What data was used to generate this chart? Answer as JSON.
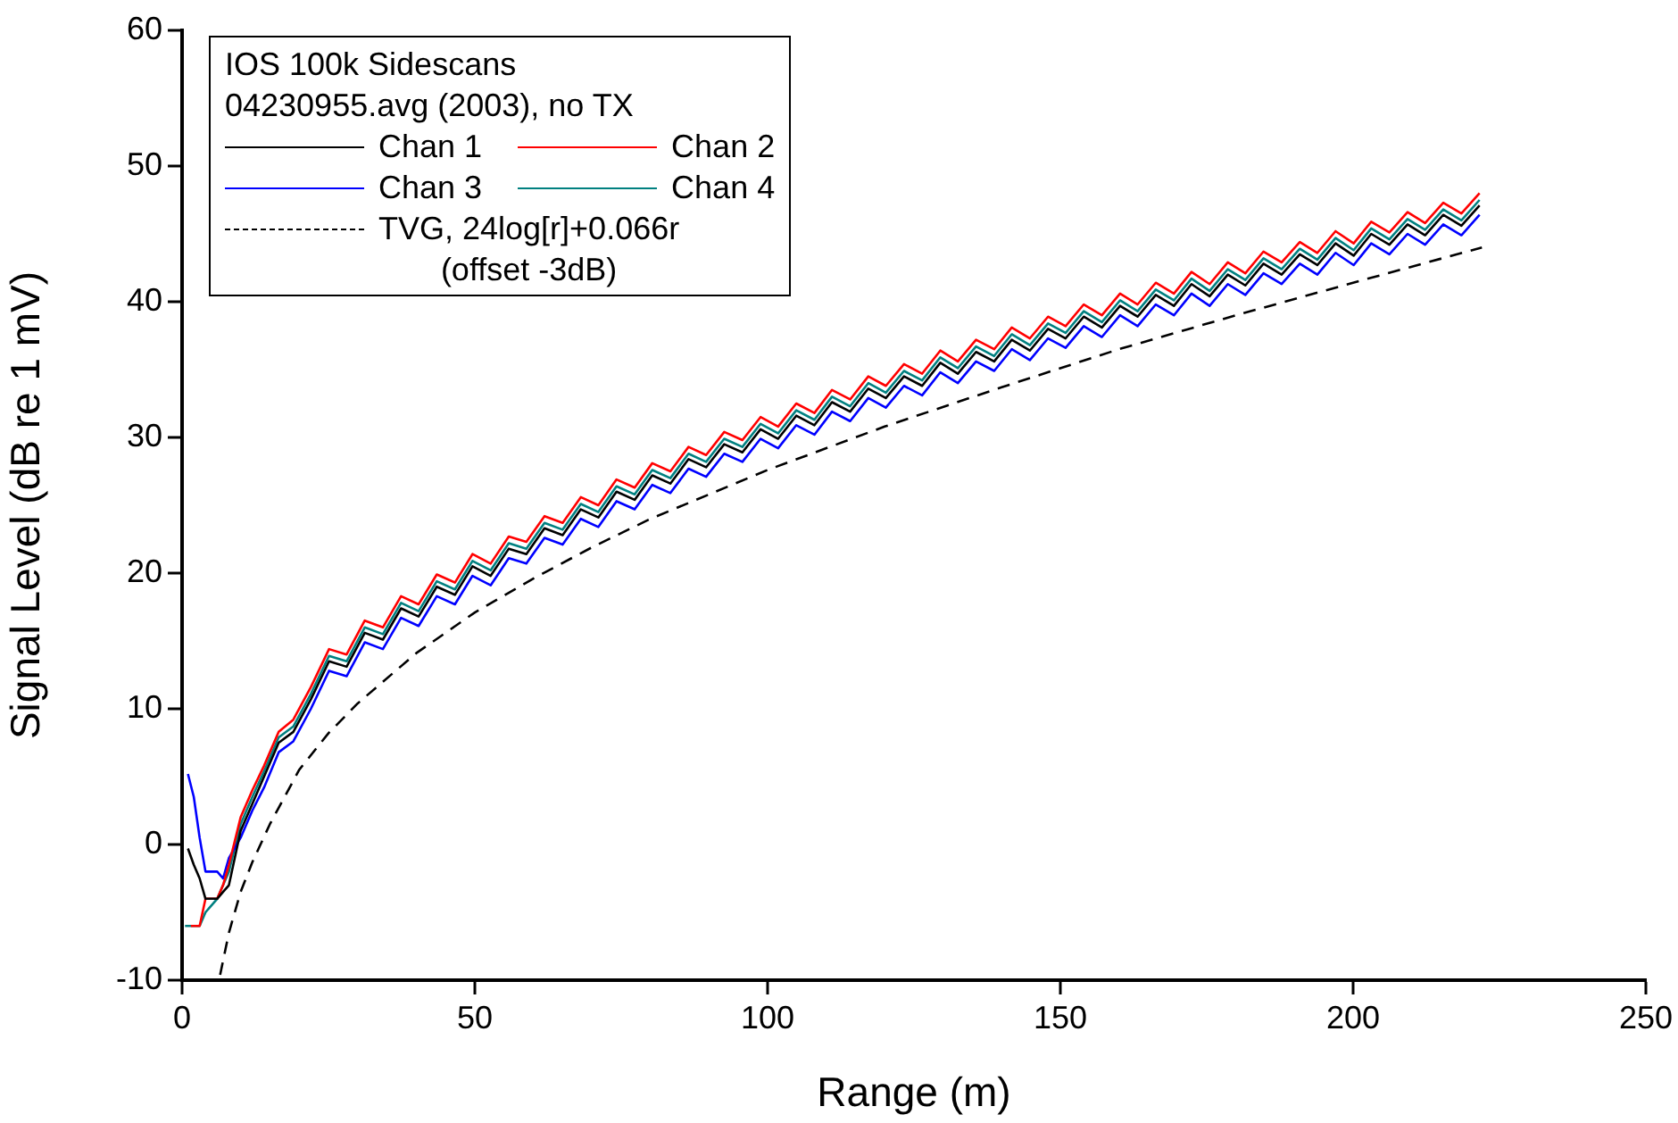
{
  "chart_data": {
    "type": "line",
    "xlabel": "Range (m)",
    "ylabel": "Signal Level (dB re 1 mV)",
    "legend_title": "IOS 100k Sidescans\n04230955.avg (2003), no TX",
    "legend": "top left",
    "marker": "none",
    "xlim": [
      0,
      250
    ],
    "xticks": [
      0,
      50,
      100,
      150,
      200,
      250
    ],
    "ylim": [
      -10,
      60
    ],
    "yticks": [
      -10,
      0,
      10,
      20,
      30,
      40,
      50,
      60
    ],
    "series": [
      {
        "name": "Chan 1",
        "color": "#000000",
        "line_style": "solid",
        "x": [
          1,
          2,
          3,
          4,
          6,
          7,
          8,
          10,
          12,
          14,
          16.5,
          19,
          22,
          25.1,
          28.1,
          31.2,
          34.3,
          37.4,
          40.4,
          43.5,
          46.6,
          49.6,
          52.7,
          55.8,
          58.8,
          61.9,
          65,
          68.1,
          71.1,
          74.2,
          77.3,
          80.3,
          83.4,
          86.5,
          89.5,
          92.6,
          95.7,
          98.8,
          101.8,
          104.9,
          108,
          111,
          114.1,
          117.2,
          120.2,
          123.3,
          126.4,
          129.5,
          132.5,
          135.6,
          138.7,
          141.7,
          144.8,
          147.9,
          150.9,
          154,
          157.1,
          160.2,
          163.2,
          166.3,
          169.4,
          172.4,
          175.5,
          178.6,
          181.6,
          184.7,
          187.8,
          190.9,
          193.9,
          197,
          200.1,
          203.1,
          206.2,
          209.3,
          212.3,
          215.4,
          218.5,
          221.6
        ],
        "values": [
          -0.3,
          -1.5,
          -2.5,
          -4,
          -4,
          -3.5,
          -3,
          1,
          3,
          5,
          7.5,
          8.3,
          10.7,
          13.5,
          13.1,
          15.6,
          15.1,
          17.4,
          16.8,
          19.0,
          18.4,
          20.5,
          19.8,
          21.8,
          21.4,
          23.3,
          22.8,
          24.7,
          24.1,
          26.0,
          25.4,
          27.2,
          26.6,
          28.4,
          27.8,
          29.5,
          28.9,
          30.6,
          29.9,
          31.6,
          30.9,
          32.6,
          31.9,
          33.6,
          32.9,
          34.5,
          33.8,
          35.5,
          34.7,
          36.3,
          35.6,
          37.2,
          36.4,
          38.0,
          37.3,
          38.9,
          38.1,
          39.7,
          38.9,
          40.5,
          39.7,
          41.3,
          40.4,
          42.0,
          41.2,
          42.8,
          42.0,
          43.5,
          42.7,
          44.3,
          43.4,
          45.0,
          44.2,
          45.7,
          44.9,
          46.4,
          45.6,
          47.1
        ]
      },
      {
        "name": "Chan 2",
        "color": "#ff0000",
        "line_style": "solid",
        "x": [
          1.5,
          3,
          4,
          6,
          7,
          8,
          10,
          12,
          14,
          16.5,
          19,
          22,
          25.1,
          28.1,
          31.2,
          34.3,
          37.4,
          40.4,
          43.5,
          46.6,
          49.6,
          52.7,
          55.8,
          58.8,
          61.9,
          65,
          68.1,
          71.1,
          74.2,
          77.3,
          80.3,
          83.4,
          86.5,
          89.5,
          92.6,
          95.7,
          98.8,
          101.8,
          104.9,
          108,
          111,
          114.1,
          117.2,
          120.2,
          123.3,
          126.4,
          129.5,
          132.5,
          135.6,
          138.7,
          141.7,
          144.8,
          147.9,
          150.9,
          154,
          157.1,
          160.2,
          163.2,
          166.3,
          169.4,
          172.4,
          175.5,
          178.6,
          181.6,
          184.7,
          187.8,
          190.9,
          193.9,
          197,
          200.1,
          203.1,
          206.2,
          209.3,
          212.3,
          215.4,
          218.5,
          221.6
        ],
        "values": [
          -6,
          -6,
          -4,
          -4,
          -3,
          -1.5,
          2,
          4,
          5.8,
          8.3,
          9.2,
          11.6,
          14.4,
          14.0,
          16.5,
          16.0,
          18.3,
          17.7,
          19.9,
          19.3,
          21.4,
          20.7,
          22.7,
          22.3,
          24.2,
          23.7,
          25.6,
          25.0,
          26.9,
          26.3,
          28.1,
          27.5,
          29.3,
          28.7,
          30.4,
          29.8,
          31.5,
          30.8,
          32.5,
          31.8,
          33.5,
          32.8,
          34.5,
          33.8,
          35.4,
          34.7,
          36.4,
          35.6,
          37.2,
          36.5,
          38.1,
          37.3,
          38.9,
          38.2,
          39.8,
          39.0,
          40.6,
          39.8,
          41.4,
          40.6,
          42.2,
          41.3,
          42.9,
          42.1,
          43.7,
          42.9,
          44.4,
          43.6,
          45.2,
          44.3,
          45.9,
          45.1,
          46.6,
          45.8,
          47.3,
          46.5,
          48.0
        ]
      },
      {
        "name": "Chan 3",
        "color": "#0000ff",
        "line_style": "solid",
        "x": [
          1,
          2,
          3,
          4,
          6,
          7,
          8,
          10,
          12,
          14,
          16.5,
          19,
          22,
          25.1,
          28.1,
          31.2,
          34.3,
          37.4,
          40.4,
          43.5,
          46.6,
          49.6,
          52.7,
          55.8,
          58.8,
          61.9,
          65,
          68.1,
          71.1,
          74.2,
          77.3,
          80.3,
          83.4,
          86.5,
          89.5,
          92.6,
          95.7,
          98.8,
          101.8,
          104.9,
          108,
          111,
          114.1,
          117.2,
          120.2,
          123.3,
          126.4,
          129.5,
          132.5,
          135.6,
          138.7,
          141.7,
          144.8,
          147.9,
          150.9,
          154,
          157.1,
          160.2,
          163.2,
          166.3,
          169.4,
          172.4,
          175.5,
          178.6,
          181.6,
          184.7,
          187.8,
          190.9,
          193.9,
          197,
          200.1,
          203.1,
          206.2,
          209.3,
          212.3,
          215.4,
          218.5,
          221.6
        ],
        "values": [
          5.2,
          3.5,
          0.5,
          -2,
          -2,
          -2.5,
          -1,
          0.5,
          2.5,
          4.2,
          6.8,
          7.6,
          10.0,
          12.8,
          12.4,
          14.9,
          14.4,
          16.7,
          16.1,
          18.3,
          17.7,
          19.8,
          19.1,
          21.1,
          20.7,
          22.6,
          22.1,
          24.0,
          23.4,
          25.3,
          24.7,
          26.5,
          25.9,
          27.7,
          27.1,
          28.8,
          28.2,
          29.9,
          29.2,
          30.9,
          30.2,
          31.9,
          31.2,
          32.9,
          32.2,
          33.8,
          33.1,
          34.8,
          34.0,
          35.6,
          34.9,
          36.5,
          35.7,
          37.3,
          36.6,
          38.2,
          37.4,
          39.0,
          38.2,
          39.8,
          39.0,
          40.6,
          39.7,
          41.3,
          40.5,
          42.1,
          41.3,
          42.8,
          42.0,
          43.6,
          42.7,
          44.3,
          43.5,
          45.0,
          44.2,
          45.7,
          44.9,
          46.4
        ]
      },
      {
        "name": "Chan 4",
        "color": "#008080",
        "line_style": "solid",
        "x": [
          0.5,
          3,
          4,
          6,
          7,
          8,
          10,
          12,
          14,
          16.5,
          19,
          22,
          25.1,
          28.1,
          31.2,
          34.3,
          37.4,
          40.4,
          43.5,
          46.6,
          49.6,
          52.7,
          55.8,
          58.8,
          61.9,
          65,
          68.1,
          71.1,
          74.2,
          77.3,
          80.3,
          83.4,
          86.5,
          89.5,
          92.6,
          95.7,
          98.8,
          101.8,
          104.9,
          108,
          111,
          114.1,
          117.2,
          120.2,
          123.3,
          126.4,
          129.5,
          132.5,
          135.6,
          138.7,
          141.7,
          144.8,
          147.9,
          150.9,
          154,
          157.1,
          160.2,
          163.2,
          166.3,
          169.4,
          172.4,
          175.5,
          178.6,
          181.6,
          184.7,
          187.8,
          190.9,
          193.9,
          197,
          200.1,
          203.1,
          206.2,
          209.3,
          212.3,
          215.4,
          218.5,
          221.6
        ],
        "values": [
          -6,
          -6,
          -5,
          -4,
          -3,
          -2,
          1.5,
          3.5,
          5.4,
          7.9,
          8.7,
          11.1,
          13.9,
          13.5,
          16.0,
          15.5,
          17.8,
          17.2,
          19.4,
          18.8,
          20.9,
          20.2,
          22.2,
          21.8,
          23.7,
          23.2,
          25.1,
          24.5,
          26.4,
          25.8,
          27.6,
          27.0,
          28.8,
          28.2,
          29.9,
          29.3,
          31.0,
          30.3,
          32.0,
          31.3,
          33.0,
          32.3,
          34.0,
          33.3,
          34.9,
          34.2,
          35.9,
          35.1,
          36.7,
          36.0,
          37.6,
          36.8,
          38.4,
          37.7,
          39.3,
          38.5,
          40.1,
          39.3,
          40.9,
          40.1,
          41.7,
          40.8,
          42.4,
          41.6,
          43.2,
          42.4,
          43.9,
          43.1,
          44.7,
          43.8,
          45.4,
          44.6,
          46.1,
          45.3,
          46.8,
          46.0,
          47.5
        ]
      },
      {
        "name": "TVG, 24log[r]+0.066r\n(offset -3dB)",
        "color": "#000000",
        "line_style": "dashed",
        "x": [
          6.5,
          8,
          10,
          12,
          15,
          20,
          25,
          30,
          40,
          50,
          60,
          70,
          80,
          90,
          100,
          120,
          140,
          160,
          180,
          200,
          222
        ],
        "values": [
          -9.6,
          -6.5,
          -3.5,
          -1.3,
          1.5,
          5.5,
          8.2,
          10.4,
          14.1,
          17.1,
          19.6,
          21.9,
          24.0,
          25.8,
          27.6,
          30.8,
          33.7,
          36.5,
          39.0,
          41.4,
          44.0
        ]
      }
    ]
  }
}
